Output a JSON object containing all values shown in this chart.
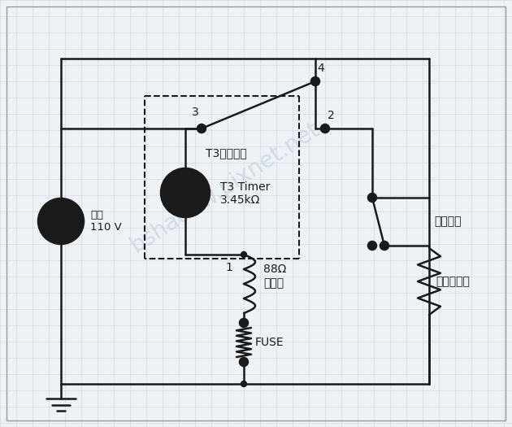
{
  "bg_color": "#edf2f7",
  "grid_color": "#cdd5de",
  "line_color": "#1a1a1a",
  "wm_color": "#bfc8d2",
  "wm_text": "bshadow.pixnet.net",
  "label_power": "電源\n110 V",
  "label_switch": "T3切換開關",
  "label_timer_l1": "T3 Timer",
  "label_timer_l2": "3.45kΩ",
  "label_temp": "溫度開關",
  "label_heater_l1": "88Ω",
  "label_heater_l2": "電熱絲",
  "label_fuse": "FUSE",
  "label_comp": "壓縮機負載",
  "n3": "3",
  "n4": "4",
  "n2": "2",
  "n1": "1"
}
